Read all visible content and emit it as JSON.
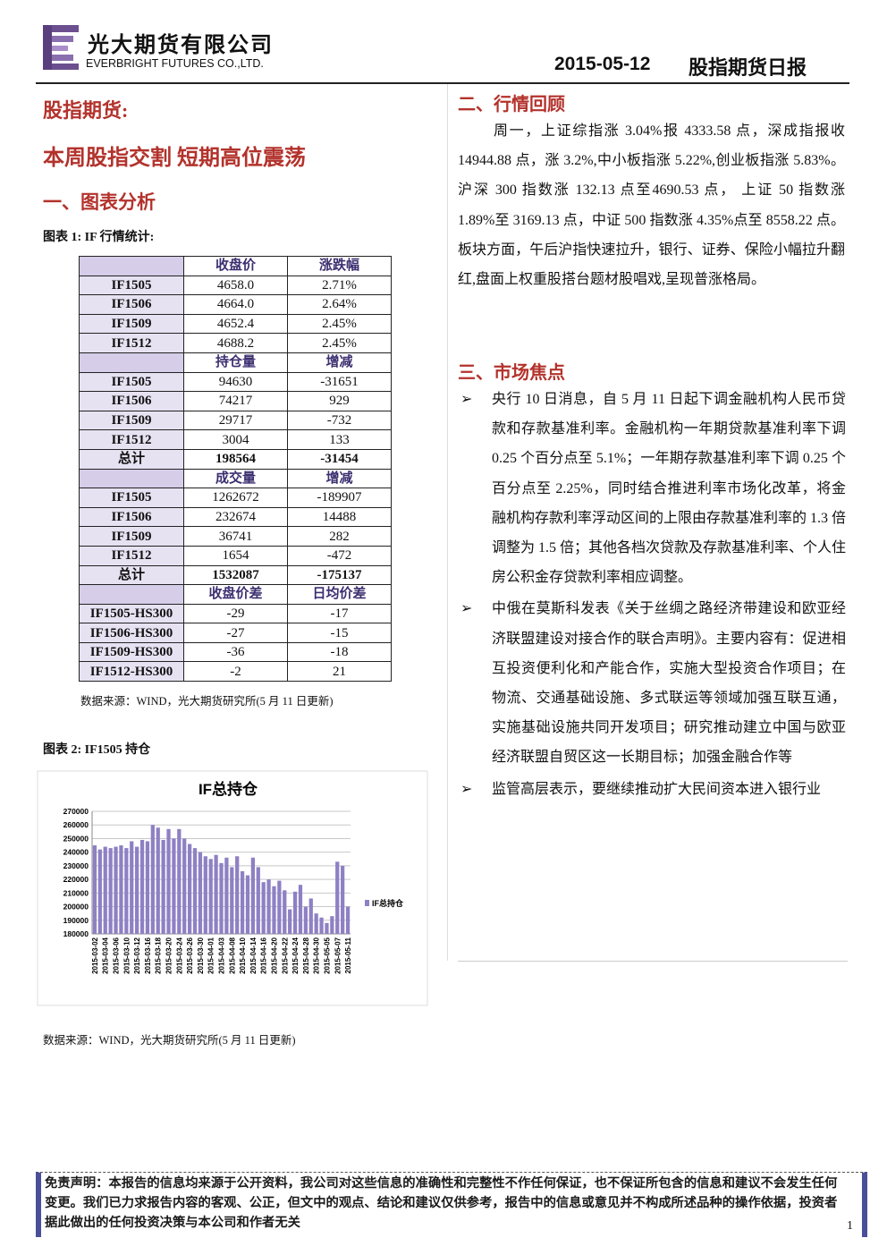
{
  "header": {
    "company_cn": "光大期货有限公司",
    "company_en": "EVERBRIGHT FUTURES CO.,LTD.",
    "date": "2015-05-12",
    "report": "股指期货日报"
  },
  "left": {
    "section": "股指期货:",
    "headline": "本周股指交割 短期高位震荡",
    "heading1": "一、图表分析",
    "table_caption": "图表 1:  IF 行情统计:",
    "table_source": "数据来源：WIND，光大期货研究所(5 月 11 日更新)",
    "chart_caption": "图表 2: IF1505 持仓",
    "chart_source": "数据来源：WIND，光大期货研究所(5 月 11 日更新)"
  },
  "table": {
    "sections": [
      {
        "header": [
          "收盘价",
          "涨跌幅"
        ],
        "rows": [
          [
            "IF1505",
            "4658.0",
            "2.71%"
          ],
          [
            "IF1506",
            "4664.0",
            "2.64%"
          ],
          [
            "IF1509",
            "4652.4",
            "2.45%"
          ],
          [
            "IF1512",
            "4688.2",
            "2.45%"
          ]
        ]
      },
      {
        "header": [
          "持仓量",
          "增减"
        ],
        "rows": [
          [
            "IF1505",
            "94630",
            "-31651"
          ],
          [
            "IF1506",
            "74217",
            "929"
          ],
          [
            "IF1509",
            "29717",
            "-732"
          ],
          [
            "IF1512",
            "3004",
            "133"
          ],
          [
            "总计",
            "198564",
            "-31454"
          ]
        ]
      },
      {
        "header": [
          "成交量",
          "增减"
        ],
        "rows": [
          [
            "IF1505",
            "1262672",
            "-189907"
          ],
          [
            "IF1506",
            "232674",
            "14488"
          ],
          [
            "IF1509",
            "36741",
            "282"
          ],
          [
            "IF1512",
            "1654",
            "-472"
          ],
          [
            "总计",
            "1532087",
            "-175137"
          ]
        ]
      },
      {
        "header": [
          "收盘价差",
          "日均价差"
        ],
        "rows": [
          [
            "IF1505-HS300",
            "-29",
            "-17"
          ],
          [
            "IF1506-HS300",
            "-27",
            "-15"
          ],
          [
            "IF1509-HS300",
            "-36",
            "-18"
          ],
          [
            "IF1512-HS300",
            "-2",
            "21"
          ]
        ]
      }
    ]
  },
  "chart_data": {
    "type": "bar",
    "title": "IF总持仓",
    "legend_position": "right",
    "grid": true,
    "categories": [
      "2015-03-02",
      null,
      "2015-03-04",
      null,
      "2015-03-06",
      null,
      "2015-03-10",
      null,
      "2015-03-12",
      null,
      "2015-03-16",
      null,
      "2015-03-18",
      null,
      "2015-03-20",
      null,
      "2015-03-24",
      null,
      "2015-03-26",
      null,
      "2015-03-30",
      null,
      "2015-04-01",
      null,
      "2015-04-03",
      null,
      "2015-04-08",
      null,
      "2015-04-10",
      null,
      "2015-04-14",
      null,
      "2015-04-16",
      null,
      "2015-04-20",
      null,
      "2015-04-22",
      null,
      "2015-04-24",
      null,
      "2015-04-28",
      null,
      "2015-04-30",
      null,
      "2015-05-05",
      null,
      "2015-05-07",
      null,
      "2015-05-11"
    ],
    "series": [
      {
        "name": "IF总持仓",
        "color": "#8f80c4",
        "values": [
          245000,
          242000,
          244000,
          243000,
          244000,
          245000,
          243000,
          248000,
          244000,
          249000,
          248000,
          260000,
          258000,
          249000,
          257000,
          250000,
          257000,
          250000,
          246000,
          243000,
          240000,
          237000,
          235000,
          238000,
          232000,
          236000,
          229000,
          237000,
          226000,
          223000,
          236000,
          229000,
          218000,
          220000,
          215000,
          219000,
          212000,
          198000,
          211000,
          216000,
          200000,
          206000,
          195000,
          192000,
          188000,
          193000,
          233000,
          230000,
          200000
        ]
      }
    ],
    "ylim": [
      180000,
      270000
    ],
    "yticks": [
      180000,
      190000,
      200000,
      210000,
      220000,
      230000,
      240000,
      250000,
      260000,
      270000
    ]
  },
  "right": {
    "heading2": "二、行情回顾",
    "review": "周一，上证综指涨 3.04%报 4333.58 点，深成指报收 14944.88 点，涨 3.2%,中小板指涨 5.22%,创业板指涨 5.83%。沪深 300 指数涨 132.13 点至4690.53 点， 上证 50 指数涨 1.89%至 3169.13 点，中证 500 指数涨 4.35%点至 8558.22 点。板块方面，午后沪指快速拉升，银行、证券、保险小幅拉升翻红,盘面上权重股搭台题材股唱戏,呈现普涨格局。",
    "heading3": "三、市场焦点",
    "bullets": [
      "央行 10 日消息，自 5 月 11 日起下调金融机构人民币贷款和存款基准利率。金融机构一年期贷款基准利率下调 0.25 个百分点至 5.1%；一年期存款基准利率下调 0.25 个百分点至 2.25%，同时结合推进利率市场化改革，将金融机构存款利率浮动区间的上限由存款基准利率的 1.3 倍调整为 1.5 倍；其他各档次贷款及存款基准利率、个人住房公积金存贷款利率相应调整。",
      "中俄在莫斯科发表《关于丝绸之路经济带建设和欧亚经济联盟建设对接合作的联合声明》。主要内容有：促进相互投资便利化和产能合作，实施大型投资合作项目；在物流、交通基础设施、多式联运等领域加强互联互通，实施基础设施共同开发项目；研究推动建立中国与欧亚经济联盟自贸区这一长期目标；加强金融合作等",
      "监管高层表示，要继续推动扩大民间资本进入银行业"
    ]
  },
  "footer": {
    "disclaimer": "免责声明：本报告的信息均来源于公开资料，我公司对这些信息的准确性和完整性不作任何保证，也不保证所包含的信息和建议不会发生任何变更。我们已力求报告内容的客观、公正，但文中的观点、结论和建议仅供参考，报告中的信息或意见并不构成所述品种的操作依据，投资者据此做出的任何投资决策与本公司和作者无关",
    "page": "1"
  }
}
